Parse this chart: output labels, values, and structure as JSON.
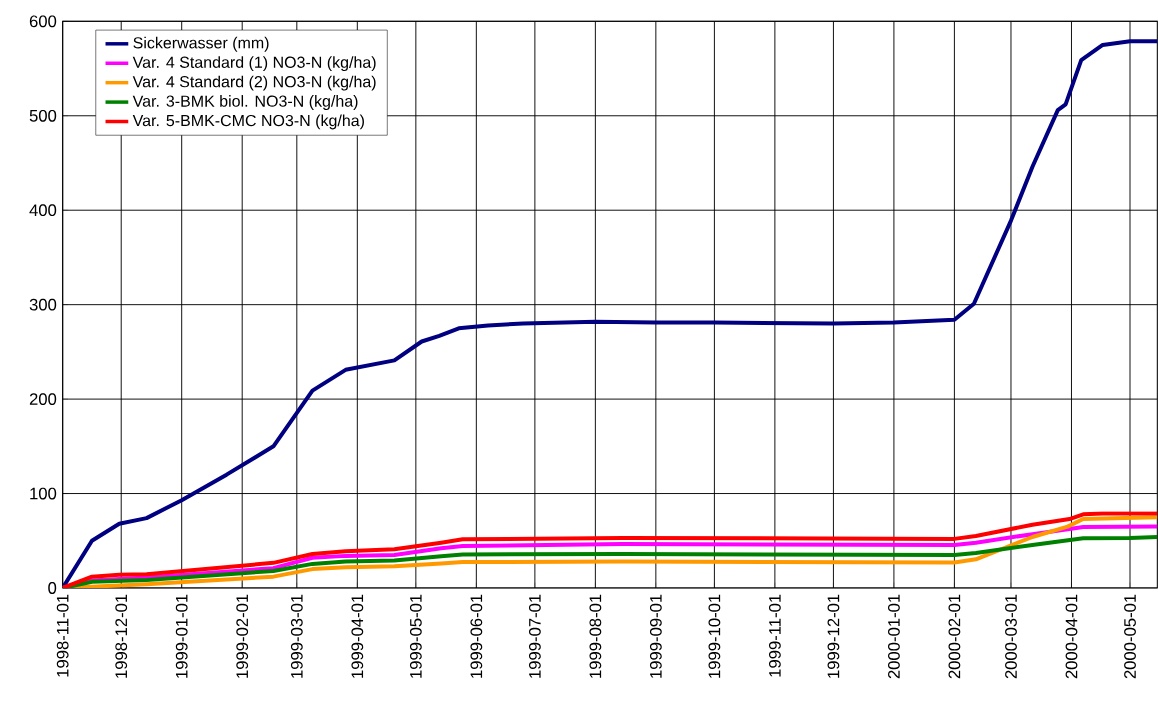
{
  "chart_data": {
    "type": "line",
    "xlim": [
      "1998-11-01",
      "2000-05-15"
    ],
    "xticks": [
      "1998-11-01",
      "1998-12-01",
      "1999-01-01",
      "1999-02-01",
      "1999-03-01",
      "1999-04-01",
      "1999-05-01",
      "1999-06-01",
      "1999-07-01",
      "1999-08-01",
      "1999-09-01",
      "1999-10-01",
      "1999-11-01",
      "1999-12-01",
      "2000-01-01",
      "2000-02-01",
      "2000-03-01",
      "2000-04-01",
      "2000-05-01"
    ],
    "ylim": [
      0,
      600
    ],
    "yticks": [
      0,
      100,
      200,
      300,
      400,
      500,
      600
    ],
    "grid": true,
    "legend": "top left",
    "marker": "none",
    "line_style": "solid",
    "series": [
      {
        "name": "Sickerwasser (mm)",
        "color": "#000080",
        "x": [
          "1998-11-01",
          "1998-11-16",
          "1998-11-30",
          "1998-12-14",
          "1999-01-01",
          "1999-01-24",
          "1999-02-17",
          "1999-03-09",
          "1999-03-26",
          "1999-04-20",
          "1999-05-04",
          "1999-05-13",
          "1999-05-23",
          "1999-06-07",
          "1999-06-25",
          "1999-08-01",
          "1999-09-01",
          "1999-10-01",
          "1999-12-01",
          "2000-01-01",
          "2000-02-01",
          "2000-02-11",
          "2000-03-01",
          "2000-03-12",
          "2000-03-25",
          "2000-03-29",
          "2000-04-06",
          "2000-04-17",
          "2000-05-01",
          "2000-05-15"
        ],
        "values": [
          0,
          50,
          68,
          74,
          93,
          120,
          150,
          209,
          231,
          241,
          261,
          267,
          275,
          278,
          280,
          282,
          281,
          281,
          280,
          281,
          284,
          301,
          389,
          446,
          506,
          512,
          559,
          575,
          579,
          579
        ]
      },
      {
        "name": "Var. 4 Standard (1) NO3-N (kg/ha)",
        "color": "#ff00ff",
        "x": [
          "1998-11-01",
          "1998-11-16",
          "1998-12-14",
          "1999-02-17",
          "1999-03-09",
          "1999-03-26",
          "1999-04-20",
          "1999-05-14",
          "1999-05-25",
          "1999-08-15",
          "2000-02-01",
          "2000-02-12",
          "2000-03-12",
          "2000-03-31",
          "2000-04-07",
          "2000-05-15"
        ],
        "values": [
          0,
          8,
          11,
          21,
          32,
          34,
          35,
          42,
          44.5,
          46.5,
          45.5,
          48,
          57,
          62.5,
          64.5,
          65
        ]
      },
      {
        "name": "Var. 4 Standard (2) NO3-N (kg/ha)",
        "color": "#ff9900",
        "x": [
          "1998-11-01",
          "1998-12-14",
          "1999-02-17",
          "1999-03-09",
          "1999-03-26",
          "1999-04-20",
          "1999-05-14",
          "1999-05-25",
          "1999-08-15",
          "2000-02-01",
          "2000-02-12",
          "2000-03-12",
          "2000-03-30",
          "2000-04-07",
          "2000-05-15"
        ],
        "values": [
          0,
          4,
          12,
          20,
          22,
          23,
          26,
          27.5,
          28,
          27,
          30.4,
          54,
          65,
          73,
          75
        ]
      },
      {
        "name": "Var. 3-BMK biol. NO3-N (kg/ha)",
        "color": "#008000",
        "x": [
          "1998-11-01",
          "1998-11-16",
          "1998-12-14",
          "1999-02-17",
          "1999-03-09",
          "1999-03-26",
          "1999-04-20",
          "1999-05-14",
          "1999-05-25",
          "1999-08-15",
          "2000-02-01",
          "2000-02-12",
          "2000-03-12",
          "2000-04-07",
          "2000-05-01",
          "2000-05-15"
        ],
        "values": [
          0,
          6.5,
          8.5,
          18,
          25.5,
          28,
          29,
          33.5,
          35.5,
          36,
          35,
          37,
          45.5,
          52.7,
          53,
          54
        ]
      },
      {
        "name": "Var. 5-BMK-CMC NO3-N (kg/ha)",
        "color": "#ff0000",
        "x": [
          "1998-11-01",
          "1998-11-16",
          "1998-11-30",
          "1998-12-14",
          "1999-02-17",
          "1999-03-09",
          "1999-03-26",
          "1999-04-20",
          "1999-05-14",
          "1999-05-25",
          "1999-08-15",
          "2000-02-01",
          "2000-02-12",
          "2000-03-12",
          "2000-03-31",
          "2000-04-07",
          "2000-04-17",
          "2000-05-15"
        ],
        "values": [
          0,
          12,
          14,
          14.5,
          26.6,
          36,
          39,
          41,
          48,
          51.5,
          53,
          52,
          55,
          67,
          73,
          78,
          79,
          79
        ]
      }
    ]
  }
}
